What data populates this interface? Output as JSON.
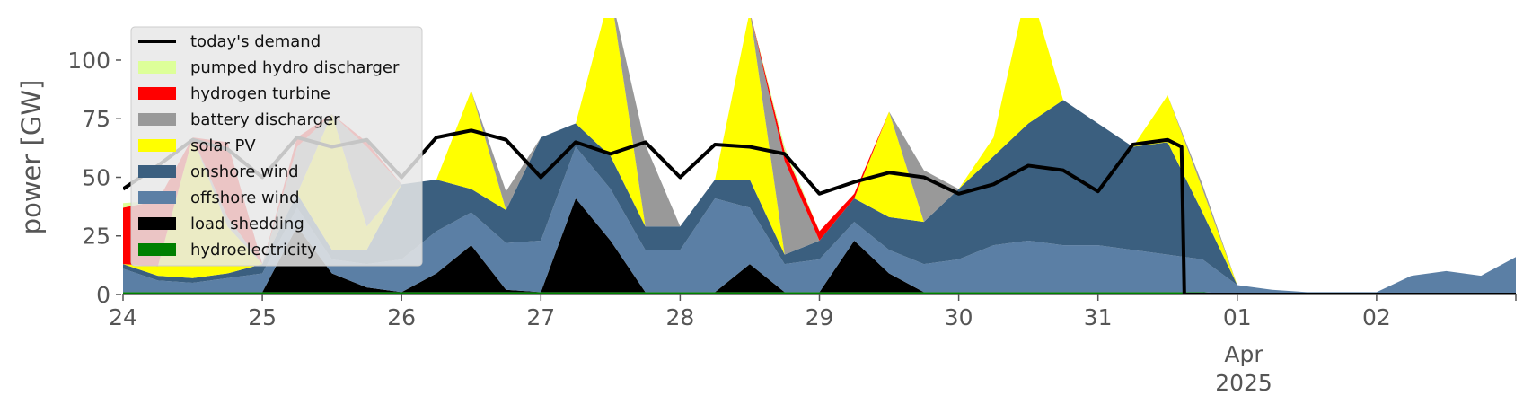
{
  "chart_data": {
    "type": "area",
    "ylabel": "power [GW]",
    "xlabel": "",
    "ylim": [
      0,
      118
    ],
    "yticks": [
      0,
      25,
      50,
      75,
      100
    ],
    "xlim": [
      0,
      10
    ],
    "x_ticks": [
      {
        "x": 0,
        "label": "24"
      },
      {
        "x": 1,
        "label": "25"
      },
      {
        "x": 2,
        "label": "26"
      },
      {
        "x": 3,
        "label": "27"
      },
      {
        "x": 4,
        "label": "28"
      },
      {
        "x": 5,
        "label": "29"
      },
      {
        "x": 6,
        "label": "30"
      },
      {
        "x": 7,
        "label": "31"
      },
      {
        "x": 8,
        "label": "01"
      },
      {
        "x": 9,
        "label": "02"
      }
    ],
    "x_tick_sublabels": {
      "month": "Apr",
      "year": "2025"
    },
    "x_unit": "days, March–April 2025",
    "grid": false,
    "legend_position": "upper-left",
    "x": [
      0,
      0.25,
      0.5,
      0.75,
      1,
      1.25,
      1.5,
      1.75,
      2,
      2.25,
      2.5,
      2.75,
      3,
      3.25,
      3.5,
      3.75,
      4,
      4.25,
      4.5,
      4.75,
      5,
      5.25,
      5.5,
      5.75,
      6,
      6.25,
      6.5,
      6.75,
      7,
      7.25,
      7.5,
      7.75,
      8,
      8.25,
      8.5,
      8.75,
      9,
      9.25,
      9.5,
      9.75,
      10
    ],
    "series": [
      {
        "name": "hydroelectricity",
        "color": "#008000",
        "values": [
          1,
          1,
          1,
          1,
          1,
          1,
          1,
          1,
          1,
          1,
          1,
          1,
          1,
          1,
          1,
          1,
          1,
          1,
          1,
          1,
          1,
          1,
          1,
          1,
          1,
          1,
          1,
          1,
          1,
          1,
          1,
          1,
          0,
          0,
          0,
          0,
          0,
          0,
          0,
          0,
          0
        ]
      },
      {
        "name": "load shedding",
        "color": "#000000",
        "values": [
          0,
          0,
          0,
          0,
          0,
          28,
          8,
          2,
          0,
          8,
          20,
          1,
          0,
          40,
          22,
          0,
          0,
          0,
          12,
          0,
          0,
          22,
          8,
          0,
          0,
          0,
          0,
          0,
          0,
          0,
          0,
          0,
          0,
          0,
          0,
          0,
          0,
          0,
          0,
          0,
          0
        ]
      },
      {
        "name": "offshore wind",
        "color": "#5b7fa5",
        "values": [
          10,
          5,
          4,
          6,
          8,
          8,
          6,
          10,
          14,
          18,
          14,
          20,
          22,
          22,
          22,
          18,
          18,
          40,
          24,
          12,
          14,
          8,
          10,
          12,
          14,
          20,
          22,
          20,
          20,
          18,
          16,
          14,
          4,
          2,
          1,
          1,
          1,
          8,
          10,
          8,
          16
        ]
      },
      {
        "name": "onshore wind",
        "color": "#3b5f7f",
        "values": [
          2,
          2,
          2,
          2,
          4,
          6,
          4,
          6,
          32,
          22,
          10,
          14,
          44,
          10,
          14,
          10,
          10,
          8,
          12,
          4,
          8,
          10,
          14,
          18,
          30,
          38,
          50,
          62,
          52,
          44,
          48,
          20,
          0,
          0,
          0,
          0,
          0,
          0,
          0,
          0,
          0
        ]
      },
      {
        "name": "solar PV",
        "color": "#ffff00",
        "values": [
          0,
          4,
          60,
          20,
          0,
          0,
          58,
          10,
          0,
          0,
          42,
          0,
          0,
          0,
          70,
          0,
          0,
          0,
          72,
          0,
          0,
          0,
          45,
          0,
          0,
          8,
          60,
          0,
          0,
          0,
          20,
          10,
          0,
          0,
          0,
          0,
          0,
          0,
          0,
          0,
          0
        ]
      },
      {
        "name": "battery discharger",
        "color": "#999999",
        "values": [
          0,
          0,
          0,
          4,
          0,
          20,
          0,
          34,
          0,
          0,
          0,
          8,
          0,
          0,
          0,
          35,
          0,
          0,
          0,
          40,
          0,
          0,
          0,
          22,
          0,
          0,
          0,
          0,
          0,
          0,
          0,
          2,
          0,
          0,
          0,
          0,
          0,
          0,
          0,
          0,
          0
        ]
      },
      {
        "name": "hydrogen turbine",
        "color": "#ff0000",
        "values": [
          24,
          28,
          0,
          32,
          0,
          4,
          0,
          2,
          0,
          0,
          0,
          0,
          0,
          0,
          0,
          0,
          0,
          0,
          0,
          4,
          4,
          2,
          0,
          0,
          0,
          0,
          0,
          0,
          0,
          0,
          0,
          0,
          0,
          0,
          0,
          0,
          0,
          0,
          0,
          0,
          0
        ]
      },
      {
        "name": "pumped hydro discharger",
        "color": "#ddff99",
        "values": [
          2,
          0,
          0,
          0,
          0,
          0,
          0,
          0,
          0,
          0,
          0,
          0,
          0,
          0,
          0,
          0,
          0,
          0,
          0,
          2,
          0,
          0,
          0,
          0,
          0,
          0,
          0,
          0,
          0,
          0,
          0,
          0,
          0,
          0,
          0,
          0,
          0,
          0,
          0,
          0,
          0
        ]
      }
    ],
    "demand": {
      "name": "today's demand",
      "color": "#000000",
      "x": [
        0,
        0.25,
        0.5,
        0.75,
        1,
        1.25,
        1.5,
        1.75,
        2,
        2.25,
        2.5,
        2.75,
        3,
        3.25,
        3.5,
        3.75,
        4,
        4.25,
        4.5,
        4.75,
        5,
        5.25,
        5.5,
        5.75,
        6,
        6.25,
        6.5,
        6.75,
        7,
        7.25,
        7.5,
        7.6,
        7.62,
        10
      ],
      "values": [
        45,
        55,
        66,
        62,
        50,
        67,
        63,
        66,
        50,
        67,
        70,
        66,
        50,
        65,
        60,
        65,
        50,
        64,
        63,
        60,
        43,
        48,
        52,
        50,
        43,
        47,
        55,
        53,
        44,
        64,
        66,
        63,
        0,
        0
      ]
    },
    "legend_order": [
      "today's demand",
      "pumped hydro discharger",
      "hydrogen turbine",
      "battery discharger",
      "solar PV",
      "onshore wind",
      "offshore wind",
      "load shedding",
      "hydroelectricity"
    ]
  }
}
